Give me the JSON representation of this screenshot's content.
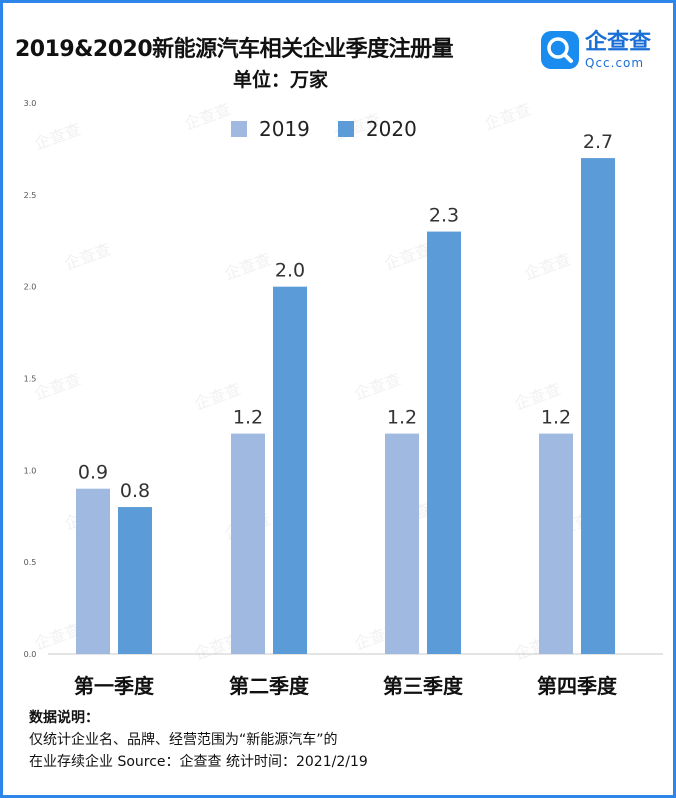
{
  "header": {
    "title": "2019&2020新能源汽车相关企业季度注册量",
    "subtitle": "单位：万家"
  },
  "logo": {
    "icon": "qcc-magnifier-icon",
    "name_cn": "企查查",
    "name_en": "Qcc.com"
  },
  "chart_data": {
    "type": "bar",
    "categories": [
      "第一季度",
      "第二季度",
      "第三季度",
      "第四季度"
    ],
    "series": [
      {
        "name": "2019",
        "values": [
          0.9,
          1.2,
          1.2,
          1.2
        ],
        "color": "#9fb9e0",
        "labels": [
          "0.9",
          "1.2",
          "1.2",
          "1.2"
        ]
      },
      {
        "name": "2020",
        "values": [
          0.8,
          2.0,
          2.3,
          2.7
        ],
        "color": "#5b9bd8",
        "labels": [
          "0.8",
          "2.0",
          "2.3",
          "2.7"
        ]
      }
    ],
    "yticks": [
      "0.0",
      "0.5",
      "1.0",
      "1.5",
      "2.0",
      "2.5",
      "3.0"
    ],
    "ylim": [
      0,
      3.0
    ],
    "legend": "top-center",
    "grid": false
  },
  "notes": {
    "heading": "数据说明：",
    "line1": "仅统计企业名、品牌、经营范围为“新能源汽车”的",
    "line2": "在业存续企业    Source：企查查    统计时间：2021/2/19"
  },
  "watermark_text": "企查查"
}
